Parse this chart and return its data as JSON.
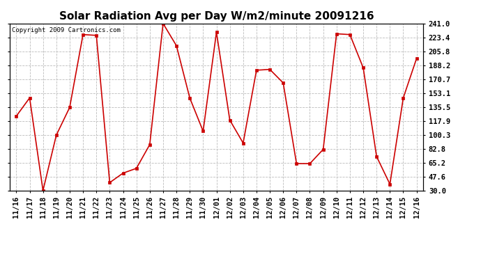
{
  "title": "Solar Radiation Avg per Day W/m2/minute 20091216",
  "copyright": "Copyright 2009 Cartronics.com",
  "labels": [
    "11/16",
    "11/17",
    "11/18",
    "11/19",
    "11/20",
    "11/21",
    "11/22",
    "11/23",
    "11/24",
    "11/25",
    "11/26",
    "11/27",
    "11/28",
    "11/29",
    "11/30",
    "12/01",
    "12/02",
    "12/03",
    "12/04",
    "12/05",
    "12/06",
    "12/07",
    "12/08",
    "12/09",
    "12/10",
    "12/11",
    "12/12",
    "12/13",
    "12/14",
    "12/15",
    "12/16"
  ],
  "values": [
    124,
    147,
    30,
    100,
    135,
    227,
    226,
    40,
    52,
    58,
    88,
    241,
    213,
    147,
    105,
    230,
    119,
    90,
    182,
    183,
    166,
    64,
    64,
    82,
    228,
    227,
    185,
    73,
    38,
    147,
    197
  ],
  "yticks": [
    30.0,
    47.6,
    65.2,
    82.8,
    100.3,
    117.9,
    135.5,
    153.1,
    170.7,
    188.2,
    205.8,
    223.4,
    241.0
  ],
  "line_color": "#cc0000",
  "marker": "s",
  "marker_size": 2.5,
  "bg_color": "#ffffff",
  "grid_color": "#bbbbbb",
  "title_fontsize": 11,
  "tick_fontsize": 7.5,
  "copyright_fontsize": 6.5,
  "figwidth": 6.9,
  "figheight": 3.75,
  "dpi": 100
}
